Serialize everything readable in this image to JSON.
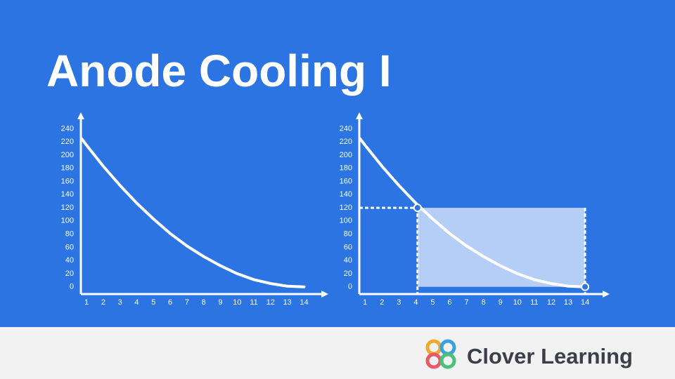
{
  "title": "Anode Cooling I",
  "brand": "Clover Learning",
  "chart_data": [
    {
      "type": "line",
      "color": "#ffffff",
      "x": [
        0.7,
        1,
        2,
        3,
        4,
        5,
        6,
        7,
        8,
        9,
        10,
        11,
        12,
        13,
        14
      ],
      "values": [
        225,
        215,
        183,
        154,
        127,
        103,
        81,
        62,
        46,
        32,
        20,
        11,
        5,
        1,
        0
      ],
      "xlim": [
        0.66,
        15.45
      ],
      "ylim": [
        -11,
        265
      ],
      "xticks": [
        1,
        2,
        3,
        4,
        5,
        6,
        7,
        8,
        9,
        10,
        11,
        12,
        13,
        14
      ],
      "yticks": [
        0,
        20,
        40,
        60,
        80,
        100,
        120,
        140,
        160,
        180,
        200,
        220,
        240
      ]
    },
    {
      "type": "line",
      "color": "#ffffff",
      "x": [
        0.7,
        1,
        2,
        3,
        4,
        5,
        6,
        7,
        8,
        9,
        10,
        11,
        12,
        13,
        14
      ],
      "values": [
        225,
        215,
        183,
        154,
        127,
        103,
        81,
        62,
        46,
        32,
        20,
        11,
        5,
        1,
        0
      ],
      "xlim": [
        0.66,
        15.45
      ],
      "ylim": [
        -11,
        265
      ],
      "xticks": [
        1,
        2,
        3,
        4,
        5,
        6,
        7,
        8,
        9,
        10,
        11,
        12,
        13,
        14
      ],
      "yticks": [
        0,
        20,
        40,
        60,
        80,
        100,
        120,
        140,
        160,
        180,
        200,
        220,
        240
      ],
      "highlight": {
        "x": 4.1,
        "y": 120,
        "x_end": 14
      }
    }
  ]
}
